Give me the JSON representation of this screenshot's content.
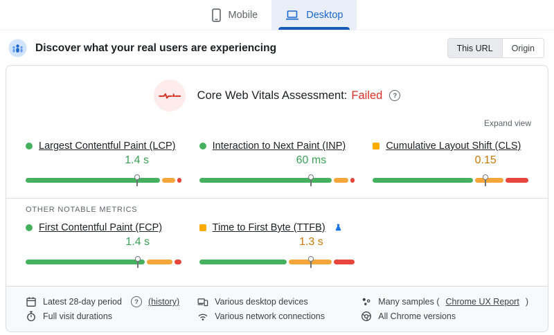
{
  "tabs": [
    {
      "id": "mobile",
      "label": "Mobile",
      "active": false
    },
    {
      "id": "desktop",
      "label": "Desktop",
      "active": true
    }
  ],
  "header": {
    "title": "Discover what your real users are experiencing",
    "scope_toggle": [
      {
        "label": "This URL",
        "selected": true
      },
      {
        "label": "Origin",
        "selected": false
      }
    ]
  },
  "assessment": {
    "title": "Core Web Vitals Assessment:",
    "status": "Failed",
    "expand_label": "Expand view"
  },
  "core_metrics": [
    {
      "id": "lcp",
      "label": "Largest Contentful Paint (LCP)",
      "value": "1.4 s",
      "rating": "good",
      "indicator": "circle",
      "marker_pct": 71.5,
      "distribution": {
        "good": 88.5,
        "needs_improvement": 9,
        "poor": 2.5
      }
    },
    {
      "id": "inp",
      "label": "Interaction to Next Paint (INP)",
      "value": "60 ms",
      "rating": "good",
      "indicator": "circle",
      "marker_pct": 72,
      "distribution": {
        "good": 87.5,
        "needs_improvement": 9.5,
        "poor": 3
      }
    },
    {
      "id": "cls",
      "label": "Cumulative Layout Shift (CLS)",
      "value": "0.15",
      "rating": "needs_improvement",
      "indicator": "square",
      "marker_pct": 72.5,
      "distribution": {
        "good": 66,
        "needs_improvement": 19,
        "poor": 15
      }
    }
  ],
  "other_metrics_heading": "OTHER NOTABLE METRICS",
  "other_metrics": [
    {
      "id": "fcp",
      "label": "First Contentful Paint (FCP)",
      "value": "1.4 s",
      "rating": "good",
      "indicator": "circle",
      "marker_pct": 72,
      "distribution": {
        "good": 78.5,
        "needs_improvement": 17,
        "poor": 4.5
      }
    },
    {
      "id": "ttfb",
      "label": "Time to First Byte (TTFB)",
      "value": "1.3 s",
      "rating": "needs_improvement",
      "indicator": "square",
      "experimental": true,
      "marker_pct": 72,
      "distribution": {
        "good": 58,
        "needs_improvement": 28,
        "poor": 14
      }
    }
  ],
  "footer": {
    "columns": [
      {
        "items": [
          {
            "icon": "calendar-icon",
            "text": "Latest 28-day period",
            "has_help": true,
            "link": "(history)"
          },
          {
            "icon": "stopwatch-icon",
            "text": "Full visit durations"
          }
        ]
      },
      {
        "items": [
          {
            "icon": "devices-icon",
            "text": "Various desktop devices"
          },
          {
            "icon": "wifi-icon",
            "text": "Various network connections"
          }
        ]
      },
      {
        "items": [
          {
            "icon": "samples-icon",
            "text": "Many samples (",
            "link": "Chrome UX Report",
            "suffix": ")"
          },
          {
            "icon": "chrome-icon",
            "text": "All Chrome versions"
          }
        ]
      }
    ]
  },
  "colors": {
    "good": "#45b15e",
    "good_text": "#3aa257",
    "ni_bar": "#f4a63b",
    "ni_text": "#c9780a",
    "ni_square": "#f9ab00",
    "poor": "#e8453c",
    "failed": "#d93025",
    "blue": "#1a73e8",
    "tab_underline": "#185abc"
  }
}
